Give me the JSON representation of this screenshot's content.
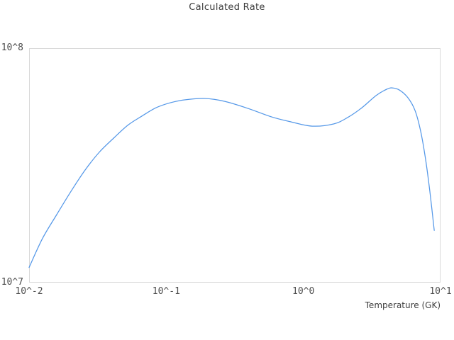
{
  "title": "Calculated Rate",
  "chart_data": {
    "type": "line",
    "title": "Calculated Rate",
    "xlabel": "Temperature (GK)",
    "ylabel": "",
    "x_scale": "log",
    "y_scale": "log",
    "xlim": [
      0.01,
      10
    ],
    "ylim": [
      10000000.0,
      100000000.0
    ],
    "x_ticks": [
      0.01,
      0.1,
      1,
      10
    ],
    "x_tick_labels": [
      "10^-2",
      "10^-1",
      "10^0",
      "10^1"
    ],
    "y_ticks": [
      10000000.0,
      100000000.0
    ],
    "y_tick_labels": [
      "10^7",
      "10^8"
    ],
    "grid": false,
    "legend": false,
    "line_color": "#5598e8",
    "border_color": "#d9d9d9",
    "series": [
      {
        "name": "calculated-rate",
        "x": [
          0.01,
          0.0125,
          0.0159,
          0.0202,
          0.0256,
          0.0325,
          0.0413,
          0.0524,
          0.0664,
          0.0843,
          0.107,
          0.136,
          0.19,
          0.267,
          0.396,
          0.587,
          0.81,
          1.16,
          1.66,
          2.1,
          2.67,
          3.39,
          4.05,
          4.45,
          5.01,
          5.78,
          6.52,
          7.16,
          7.78,
          8.36,
          9.0
        ],
        "y": [
          11600000.0,
          15400000.0,
          19500000.0,
          24500000.0,
          30200000.0,
          36000000.0,
          41300000.0,
          46900000.0,
          51300000.0,
          55700000.0,
          58500000.0,
          60200000.0,
          61000000.0,
          59300000.0,
          55300000.0,
          50900000.0,
          48500000.0,
          46500000.0,
          47500000.0,
          50600000.0,
          55700000.0,
          62800000.0,
          66800000.0,
          67700000.0,
          66300000.0,
          61500000.0,
          54200000.0,
          44300000.0,
          33600000.0,
          24500000.0,
          16700000.0
        ]
      }
    ]
  }
}
